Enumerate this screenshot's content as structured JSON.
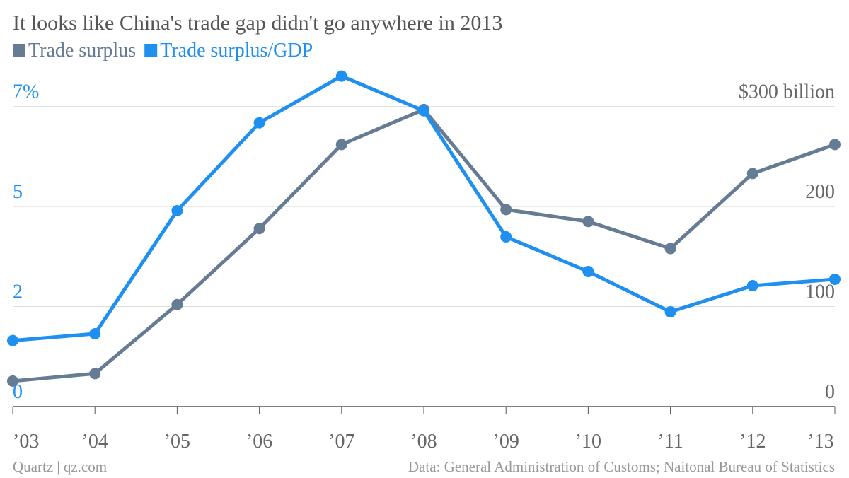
{
  "chart_data": {
    "type": "line",
    "title": "It looks like China's trade gap didn't go anywhere in 2013",
    "categories": [
      "’03",
      "’04",
      "’05",
      "’06",
      "’07",
      "’08",
      "’09",
      "’10",
      "’11",
      "’12",
      "’13"
    ],
    "series": [
      {
        "name": "Trade surplus",
        "color": "#667b94",
        "axis": "y2",
        "values": [
          25.5,
          33,
          102,
          178,
          262,
          297,
          197,
          185,
          158,
          233,
          262
        ]
      },
      {
        "name": "Trade surplus/GDP",
        "color": "#1f8ff0",
        "values": [
          1.54,
          1.7,
          4.57,
          6.62,
          7.71,
          6.9,
          3.96,
          3.15,
          2.21,
          2.82,
          2.97
        ]
      }
    ],
    "ylim": [
      0,
      8
    ],
    "yticks": [
      0,
      {
        "value": 2.333,
        "label": "2"
      },
      {
        "value": 4.667,
        "label": "5"
      },
      {
        "value": 7,
        "label": "7%"
      }
    ],
    "y2lim": [
      0,
      342.857
    ],
    "y2ticks": [
      0,
      100,
      200,
      {
        "value": 300,
        "label": "$300 billion"
      }
    ],
    "grid": true,
    "source_left": "Quartz | qz.com",
    "source_right": "Data: General Administration of Customs; Naitonal Bureau of Statistics"
  }
}
